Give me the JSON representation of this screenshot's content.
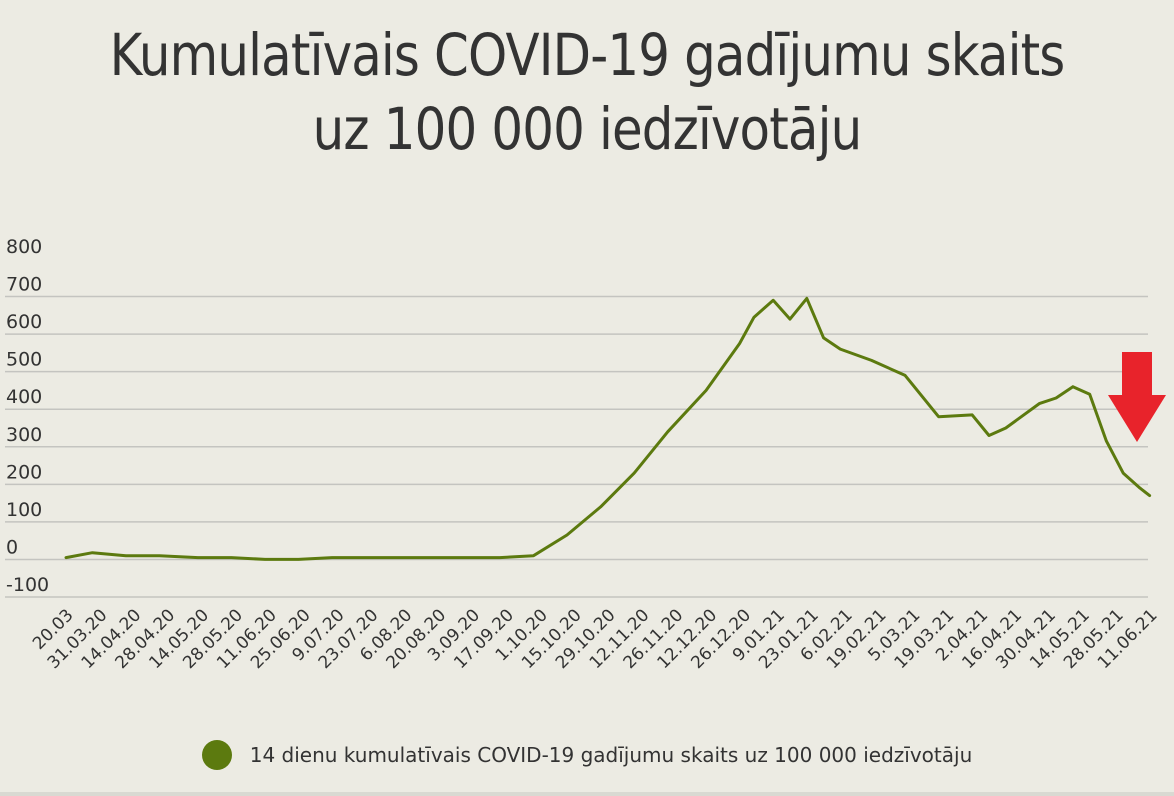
{
  "chart_data": {
    "type": "line",
    "title": "Kumulatīvais COVID-19 gadījumu skaits uz 100 000 iedzīvotāju",
    "xlabel": "",
    "ylabel": "",
    "ylim": [
      -100,
      800
    ],
    "yticks": [
      -100,
      0,
      100,
      200,
      300,
      400,
      500,
      600,
      700,
      800
    ],
    "ytick_labels": [
      "-100",
      "0",
      "100",
      "200",
      "300",
      "400",
      "500",
      "600",
      "700",
      "800"
    ],
    "x_tick_labels": [
      "20.03",
      "31.03.20",
      "14.04.20",
      "28.04.20",
      "14.05.20",
      "28.05.20",
      "11.06.20",
      "25.06.20",
      "9.07.20",
      "23.07.20",
      "6.08.20",
      "20.08.20",
      "3.09.20",
      "17.09.20",
      "1.10.20",
      "15.10.20",
      "29.10.20",
      "12.11.20",
      "26.11.20",
      "12.12.20",
      "26.12.20",
      "9.01.21",
      "23.01.21",
      "6.02.21",
      "19.02.21",
      "5.03.21",
      "19.03.21",
      "2.04.21",
      "16.04.21",
      "30.04.21",
      "14.05.21",
      "28.05.21",
      "11.06.21"
    ],
    "grid": true,
    "legend_position": "bottom",
    "series": [
      {
        "name": "14 dienu kumulatīvais COVID-19 gadījumu skaits uz 100 000 iedzīvotāju",
        "color": "#5c7a0f",
        "x": [
          "2020-03-20",
          "2020-03-31",
          "2020-04-14",
          "2020-04-28",
          "2020-05-14",
          "2020-05-28",
          "2020-06-11",
          "2020-06-25",
          "2020-07-09",
          "2020-07-23",
          "2020-08-06",
          "2020-08-20",
          "2020-09-03",
          "2020-09-17",
          "2020-10-01",
          "2020-10-15",
          "2020-10-29",
          "2020-11-12",
          "2020-11-26",
          "2020-12-12",
          "2020-12-26",
          "2021-01-01",
          "2021-01-09",
          "2021-01-16",
          "2021-01-23",
          "2021-01-30",
          "2021-02-06",
          "2021-02-19",
          "2021-03-05",
          "2021-03-19",
          "2021-04-02",
          "2021-04-09",
          "2021-04-16",
          "2021-04-30",
          "2021-05-07",
          "2021-05-14",
          "2021-05-21",
          "2021-05-28",
          "2021-06-04",
          "2021-06-11",
          "2021-06-15"
        ],
        "y": [
          5,
          18,
          10,
          10,
          5,
          5,
          0,
          0,
          5,
          5,
          5,
          5,
          5,
          5,
          10,
          65,
          140,
          230,
          340,
          450,
          575,
          645,
          690,
          640,
          695,
          590,
          560,
          530,
          490,
          380,
          385,
          330,
          350,
          415,
          430,
          460,
          440,
          315,
          230,
          190,
          170
        ]
      }
    ]
  },
  "legend": {
    "label": "14 dienu kumulatīvais COVID-19 gadījumu skaits uz 100 000 iedzīvotāju"
  },
  "annotation": {
    "arrow_icon": "down-arrow-icon",
    "arrow_color": "#e8232b"
  }
}
